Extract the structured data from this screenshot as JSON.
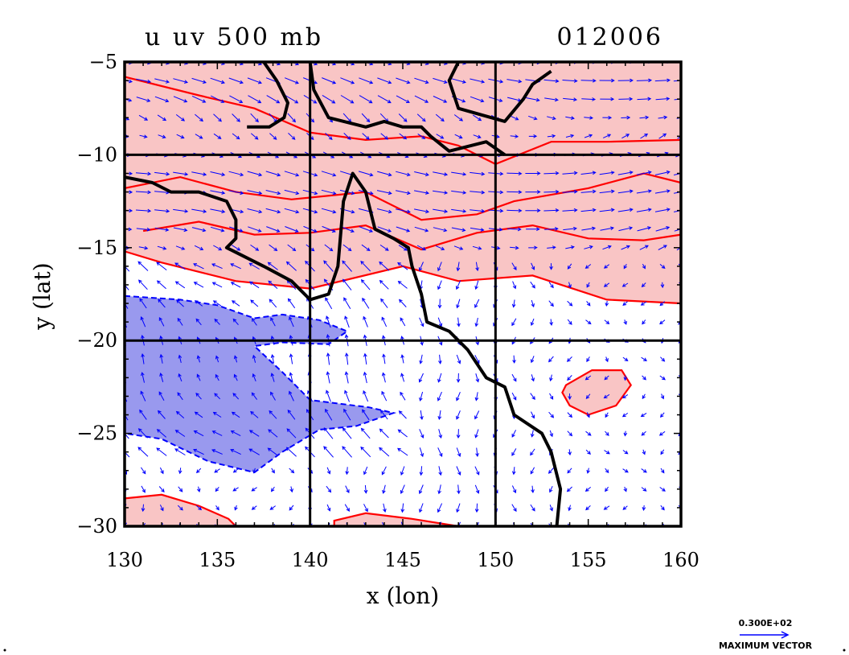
{
  "chart_data": {
    "type": "contour",
    "title_left": "u  uv 500  mb",
    "title_right": "012006",
    "xlabel": "x (lon)",
    "ylabel": "y (lat)",
    "xlim": [
      130,
      160
    ],
    "ylim": [
      -30,
      -5
    ],
    "x_ticks": [
      "130",
      "135",
      "140",
      "145",
      "150",
      "155",
      "160"
    ],
    "y_ticks": [
      "−5",
      "−10",
      "−15",
      "−20",
      "−25",
      "−30"
    ],
    "x_tick_values": [
      130,
      135,
      140,
      145,
      150,
      155,
      160
    ],
    "y_tick_values": [
      -5,
      -10,
      -15,
      -20,
      -25,
      -30
    ],
    "grid": true,
    "grid_lines": {
      "lon": [
        140,
        150
      ],
      "lat": [
        -10,
        -20
      ]
    },
    "vector_grid": {
      "lon_step": 1,
      "lat_step": 1
    },
    "colors": {
      "positive_fill": "#f9c5c5",
      "positive_line": "#ff0000",
      "negative_fill": "#9999ee",
      "negative_line": "#0000ff",
      "vectors": "#0000ff",
      "coastline": "#000000"
    },
    "positive_regions": [
      {
        "name": "northern positive band",
        "points": [
          [
            130,
            -5
          ],
          [
            160,
            -5
          ],
          [
            160,
            -18
          ],
          [
            156,
            -17.8
          ],
          [
            152,
            -16.5
          ],
          [
            148,
            -16.8
          ],
          [
            145,
            -16
          ],
          [
            140,
            -17.2
          ],
          [
            136,
            -16.8
          ],
          [
            132,
            -15.8
          ],
          [
            130,
            -15.2
          ]
        ]
      },
      {
        "name": "positive cell near 156E 22S",
        "points": [
          [
            153.8,
            -22.4
          ],
          [
            155.2,
            -21.6
          ],
          [
            156.8,
            -21.6
          ],
          [
            157.3,
            -22.4
          ],
          [
            156.5,
            -23.5
          ],
          [
            155,
            -24
          ],
          [
            154,
            -23.5
          ],
          [
            153.6,
            -22.8
          ]
        ]
      },
      {
        "name": "southwest positive patch",
        "points": [
          [
            130,
            -28.5
          ],
          [
            132,
            -28.3
          ],
          [
            134,
            -28.9
          ],
          [
            135.6,
            -29.6
          ],
          [
            136,
            -30
          ],
          [
            130,
            -30
          ]
        ]
      },
      {
        "name": "southern positive patch",
        "points": [
          [
            141.3,
            -29.7
          ],
          [
            143,
            -29.3
          ],
          [
            145.5,
            -29.6
          ],
          [
            148,
            -30
          ],
          [
            141.3,
            -30
          ]
        ]
      }
    ],
    "inner_contours": [
      [
        [
          130,
          -5.8
        ],
        [
          134,
          -6.8
        ],
        [
          137,
          -7.5
        ],
        [
          140,
          -8.8
        ],
        [
          143,
          -9.2
        ],
        [
          146,
          -9
        ],
        [
          148,
          -9.5
        ],
        [
          150,
          -10.5
        ],
        [
          153,
          -9.3
        ],
        [
          156,
          -9.3
        ],
        [
          160,
          -9.2
        ]
      ],
      [
        [
          130,
          -11.8
        ],
        [
          133,
          -11.2
        ],
        [
          136,
          -12
        ],
        [
          139,
          -12.4
        ],
        [
          143,
          -12
        ],
        [
          146,
          -13.5
        ],
        [
          149,
          -13.2
        ],
        [
          151,
          -12.5
        ],
        [
          155,
          -11.8
        ],
        [
          158,
          -11
        ],
        [
          160,
          -11.5
        ]
      ],
      [
        [
          131,
          -14.1
        ],
        [
          134,
          -13.6
        ],
        [
          137,
          -14.3
        ],
        [
          140,
          -14.2
        ],
        [
          143,
          -13.8
        ],
        [
          146,
          -15.1
        ],
        [
          149,
          -14.2
        ],
        [
          152,
          -13.8
        ],
        [
          155,
          -14.5
        ],
        [
          158,
          -14.6
        ],
        [
          160,
          -14.3
        ]
      ]
    ],
    "negative_regions": [
      {
        "name": "negative region near 135E 22S",
        "points": [
          [
            130,
            -17.6
          ],
          [
            133,
            -17.8
          ],
          [
            135,
            -18.1
          ],
          [
            137,
            -18.8
          ],
          [
            138.5,
            -18.6
          ],
          [
            140.5,
            -18.9
          ],
          [
            142,
            -19.5
          ],
          [
            141,
            -20.2
          ],
          [
            138.5,
            -20.1
          ],
          [
            137,
            -20.3
          ],
          [
            138.5,
            -21.7
          ],
          [
            140,
            -23.2
          ],
          [
            143.2,
            -23.6
          ],
          [
            144.5,
            -23.9
          ],
          [
            142.5,
            -24.6
          ],
          [
            140.5,
            -24.8
          ],
          [
            138.5,
            -26
          ],
          [
            137,
            -27.1
          ],
          [
            134.5,
            -26.5
          ],
          [
            132,
            -25.3
          ],
          [
            130,
            -25
          ]
        ]
      }
    ],
    "coastline": [
      [
        [
          137.5,
          -5
        ],
        [
          138.2,
          -6
        ],
        [
          138.8,
          -7.2
        ],
        [
          138.6,
          -8
        ],
        [
          137.8,
          -8.5
        ],
        [
          136.6,
          -8.5
        ]
      ],
      [
        [
          140,
          -5
        ],
        [
          140.2,
          -6.5
        ],
        [
          141,
          -8
        ],
        [
          143,
          -8.5
        ],
        [
          144,
          -8.2
        ],
        [
          145,
          -8.5
        ],
        [
          146,
          -8.5
        ],
        [
          146.5,
          -9
        ],
        [
          147.5,
          -9.8
        ],
        [
          149.5,
          -9.3
        ],
        [
          150.5,
          -10
        ]
      ],
      [
        [
          148,
          -5
        ],
        [
          147.5,
          -6
        ],
        [
          148,
          -7.5
        ],
        [
          150.5,
          -8.2
        ],
        [
          151.5,
          -7
        ],
        [
          152,
          -6.2
        ],
        [
          153,
          -5.5
        ]
      ],
      [
        [
          130,
          -11.2
        ],
        [
          131.5,
          -11.5
        ],
        [
          132.5,
          -12
        ],
        [
          134,
          -12
        ],
        [
          135.5,
          -12.5
        ],
        [
          136,
          -13.5
        ],
        [
          136,
          -14.5
        ],
        [
          135.5,
          -15
        ],
        [
          137.5,
          -16
        ],
        [
          139,
          -16.8
        ],
        [
          140,
          -17.8
        ],
        [
          141,
          -17.5
        ],
        [
          141.5,
          -16
        ],
        [
          141.8,
          -12.5
        ],
        [
          142.3,
          -11
        ],
        [
          143,
          -12
        ],
        [
          143.5,
          -14
        ],
        [
          144.5,
          -14.5
        ],
        [
          145.3,
          -15
        ],
        [
          145.5,
          -16
        ],
        [
          146,
          -17.5
        ],
        [
          146.3,
          -19
        ],
        [
          147.5,
          -19.5
        ],
        [
          148.5,
          -20.5
        ],
        [
          149.5,
          -22
        ],
        [
          150.5,
          -22.5
        ],
        [
          151,
          -24
        ],
        [
          152.5,
          -25
        ],
        [
          153,
          -26
        ],
        [
          153.5,
          -28
        ],
        [
          153.3,
          -30
        ]
      ]
    ],
    "reference_vector": {
      "value": "0.300E+02",
      "label": "MAXIMUM VECTOR"
    }
  }
}
